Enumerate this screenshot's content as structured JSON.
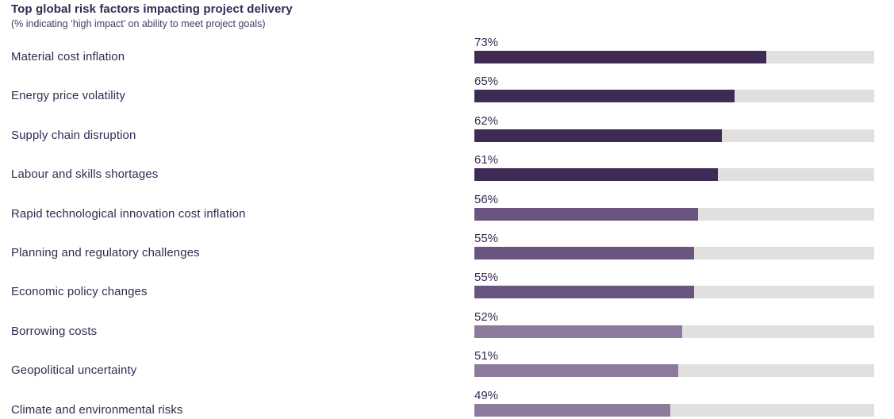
{
  "chart": {
    "title": "Top global risk factors impacting project delivery",
    "subtitle": "(% indicating ‘high impact’ on ability to meet project goals)"
  },
  "chart_data": {
    "type": "bar",
    "orientation": "horizontal",
    "title": "Top global risk factors impacting project delivery",
    "subtitle": "(% indicating ‘high impact’ on ability to meet project goals)",
    "xlabel": "",
    "ylabel": "",
    "xlim": [
      0,
      100
    ],
    "grid": false,
    "legend": "none",
    "categories": [
      "Material cost inflation",
      "Energy price volatility",
      "Supply chain disruption",
      "Labour and skills shortages",
      "Rapid technological innovation cost inflation",
      "Planning and regulatory challenges",
      "Economic policy changes",
      "Borrowing costs",
      "Geopolitical uncertainty",
      "Climate and environmental risks"
    ],
    "values": [
      73,
      65,
      62,
      61,
      56,
      55,
      55,
      52,
      51,
      49
    ],
    "value_labels": [
      "73%",
      "65%",
      "62%",
      "61%",
      "56%",
      "55%",
      "55%",
      "52%",
      "51%",
      "49%"
    ],
    "bar_colors": [
      "#3f2a56",
      "#3f2a56",
      "#3f2a56",
      "#3f2a56",
      "#6a5581",
      "#6a5581",
      "#6a5581",
      "#8b7a9c",
      "#8b7a9c",
      "#8b7a9c"
    ],
    "colors": {
      "bar_dark": "#3f2a56",
      "bar_medium": "#6a5581",
      "bar_light": "#8b7a9c",
      "track": "#e2e0de",
      "text": "#362a52"
    }
  }
}
